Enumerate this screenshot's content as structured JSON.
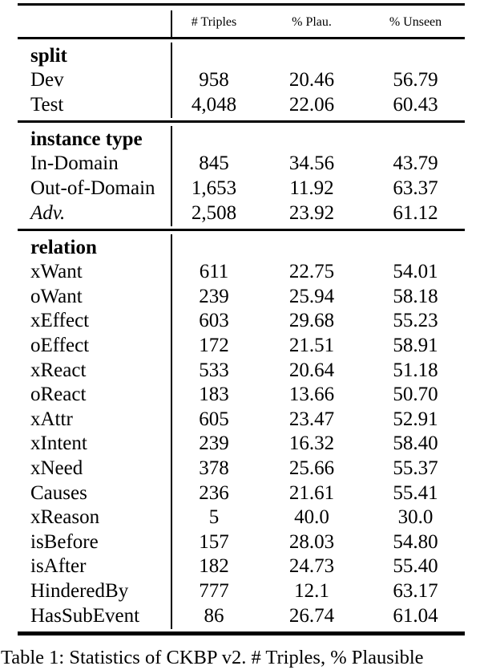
{
  "table": {
    "columns": [
      "# Triples",
      "% Plau.",
      "% Unseen"
    ],
    "sections": [
      {
        "header": "split",
        "rows": [
          {
            "label": "Dev",
            "italic": false,
            "values": [
              "958",
              "20.46",
              "56.79"
            ]
          },
          {
            "label": "Test",
            "italic": false,
            "values": [
              "4,048",
              "22.06",
              "60.43"
            ]
          }
        ]
      },
      {
        "header": "instance type",
        "rows": [
          {
            "label": "In-Domain",
            "italic": false,
            "values": [
              "845",
              "34.56",
              "43.79"
            ]
          },
          {
            "label": "Out-of-Domain",
            "italic": false,
            "values": [
              "1,653",
              "11.92",
              "63.37"
            ]
          },
          {
            "label": "Adv.",
            "italic": true,
            "values": [
              "2,508",
              "23.92",
              "61.12"
            ]
          }
        ]
      },
      {
        "header": "relation",
        "rows": [
          {
            "label": "xWant",
            "italic": false,
            "values": [
              "611",
              "22.75",
              "54.01"
            ]
          },
          {
            "label": "oWant",
            "italic": false,
            "values": [
              "239",
              "25.94",
              "58.18"
            ]
          },
          {
            "label": "xEffect",
            "italic": false,
            "values": [
              "603",
              "29.68",
              "55.23"
            ]
          },
          {
            "label": "oEffect",
            "italic": false,
            "values": [
              "172",
              "21.51",
              "58.91"
            ]
          },
          {
            "label": "xReact",
            "italic": false,
            "values": [
              "533",
              "20.64",
              "51.18"
            ]
          },
          {
            "label": "oReact",
            "italic": false,
            "values": [
              "183",
              "13.66",
              "50.70"
            ]
          },
          {
            "label": "xAttr",
            "italic": false,
            "values": [
              "605",
              "23.47",
              "52.91"
            ]
          },
          {
            "label": "xIntent",
            "italic": false,
            "values": [
              "239",
              "16.32",
              "58.40"
            ]
          },
          {
            "label": "xNeed",
            "italic": false,
            "values": [
              "378",
              "25.66",
              "55.37"
            ]
          },
          {
            "label": "Causes",
            "italic": false,
            "values": [
              "236",
              "21.61",
              "55.41"
            ]
          },
          {
            "label": "xReason",
            "italic": false,
            "values": [
              "5",
              "40.0",
              "30.0"
            ]
          },
          {
            "label": "isBefore",
            "italic": false,
            "values": [
              "157",
              "28.03",
              "54.80"
            ]
          },
          {
            "label": "isAfter",
            "italic": false,
            "values": [
              "182",
              "24.73",
              "55.40"
            ]
          },
          {
            "label": "HinderedBy",
            "italic": false,
            "values": [
              "777",
              "12.1",
              "63.17"
            ]
          },
          {
            "label": "HasSubEvent",
            "italic": false,
            "values": [
              "86",
              "26.74",
              "61.04"
            ]
          }
        ]
      }
    ]
  },
  "caption": "Table 1: Statistics of CKBP v2. # Triples, % Plausible",
  "colors": {
    "text": "#000000",
    "background": "#ffffff",
    "rule": "#000000"
  }
}
